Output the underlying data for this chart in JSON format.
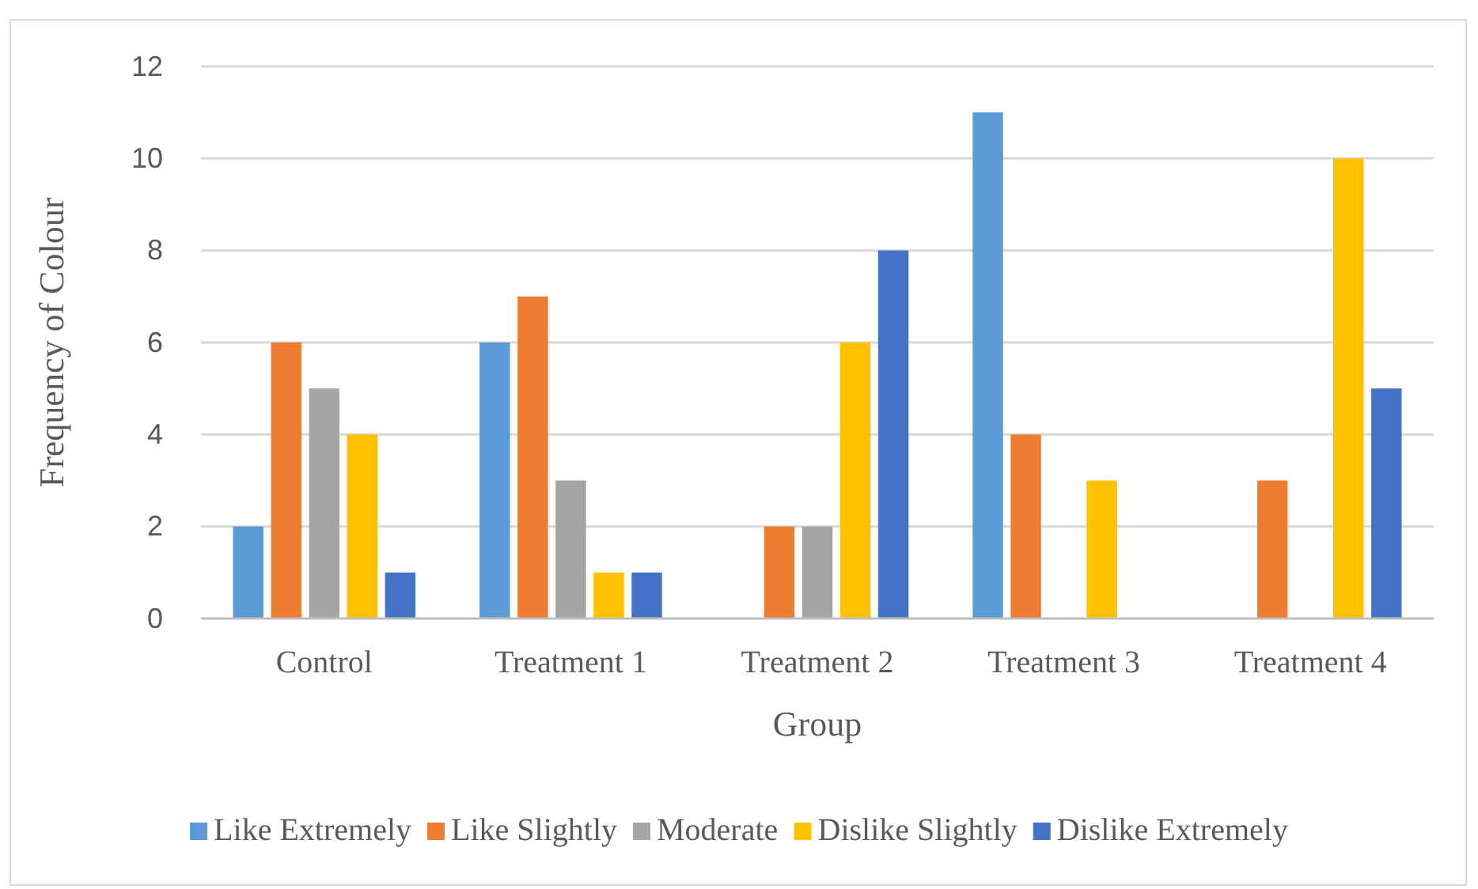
{
  "chart_data": {
    "type": "bar",
    "categories": [
      "Control",
      "Treatment 1",
      "Treatment 2",
      "Treatment 3",
      "Treatment 4"
    ],
    "series": [
      {
        "name": "Like Extremely",
        "color": "#5b9bd5",
        "values": [
          2,
          6,
          0,
          11,
          0
        ]
      },
      {
        "name": "Like Slightly",
        "color": "#ed7d31",
        "values": [
          6,
          7,
          2,
          4,
          3
        ]
      },
      {
        "name": "Moderate",
        "color": "#a5a5a5",
        "values": [
          5,
          3,
          2,
          0,
          0
        ]
      },
      {
        "name": "Dislike Slightly",
        "color": "#ffc000",
        "values": [
          4,
          1,
          6,
          3,
          10
        ]
      },
      {
        "name": "Dislike Extremely",
        "color": "#4472c4",
        "values": [
          1,
          1,
          8,
          0,
          5
        ]
      }
    ],
    "xlabel": "Group",
    "ylabel": "Frequency of Colour",
    "ylim": [
      0,
      12
    ],
    "yticks": [
      0,
      2,
      4,
      6,
      8,
      10,
      12
    ],
    "grid": "y",
    "legend": "bottom"
  }
}
